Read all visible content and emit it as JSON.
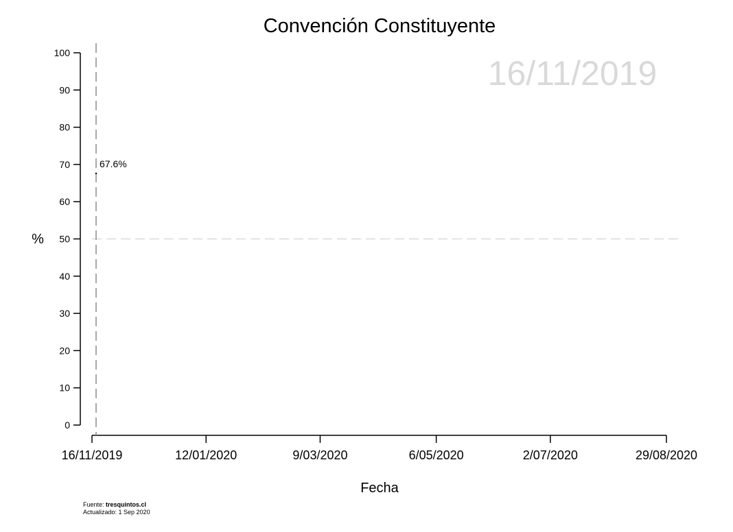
{
  "chart_data": {
    "type": "line",
    "title": "Convención Constituyente",
    "xlabel": "Fecha",
    "ylabel": "%",
    "ylim": [
      0,
      100
    ],
    "yticks": [
      0,
      10,
      20,
      30,
      40,
      50,
      60,
      70,
      80,
      90,
      100
    ],
    "xlim": [
      "2019-11-16",
      "2020-08-29"
    ],
    "xticks": [
      {
        "date": "2019-11-16",
        "label": "16/11/2019"
      },
      {
        "date": "2020-01-12",
        "label": "12/01/2020"
      },
      {
        "date": "2020-03-09",
        "label": "9/03/2020"
      },
      {
        "date": "2020-05-06",
        "label": "6/05/2020"
      },
      {
        "date": "2020-07-02",
        "label": "2/07/2020"
      },
      {
        "date": "2020-08-29",
        "label": "29/08/2020"
      }
    ],
    "reference_line_y": 50,
    "current_date_marker": "2019-11-16",
    "current_date_label": "16/11/2019",
    "series": [
      {
        "x": [
          "2019-11-16"
        ],
        "y": [
          67.6
        ],
        "color": "#000000"
      }
    ],
    "point_label": "67.6%",
    "grid": false,
    "colors": {
      "axis": "#000000",
      "reference": "#d9d9d9",
      "marker": "#8c8c8c",
      "watermark": "#d9d9d9"
    }
  },
  "footer": {
    "source_prefix": "Fuente: ",
    "source_name": "tresquintos.cl",
    "updated": "Actualizado: 1 Sep 2020"
  }
}
